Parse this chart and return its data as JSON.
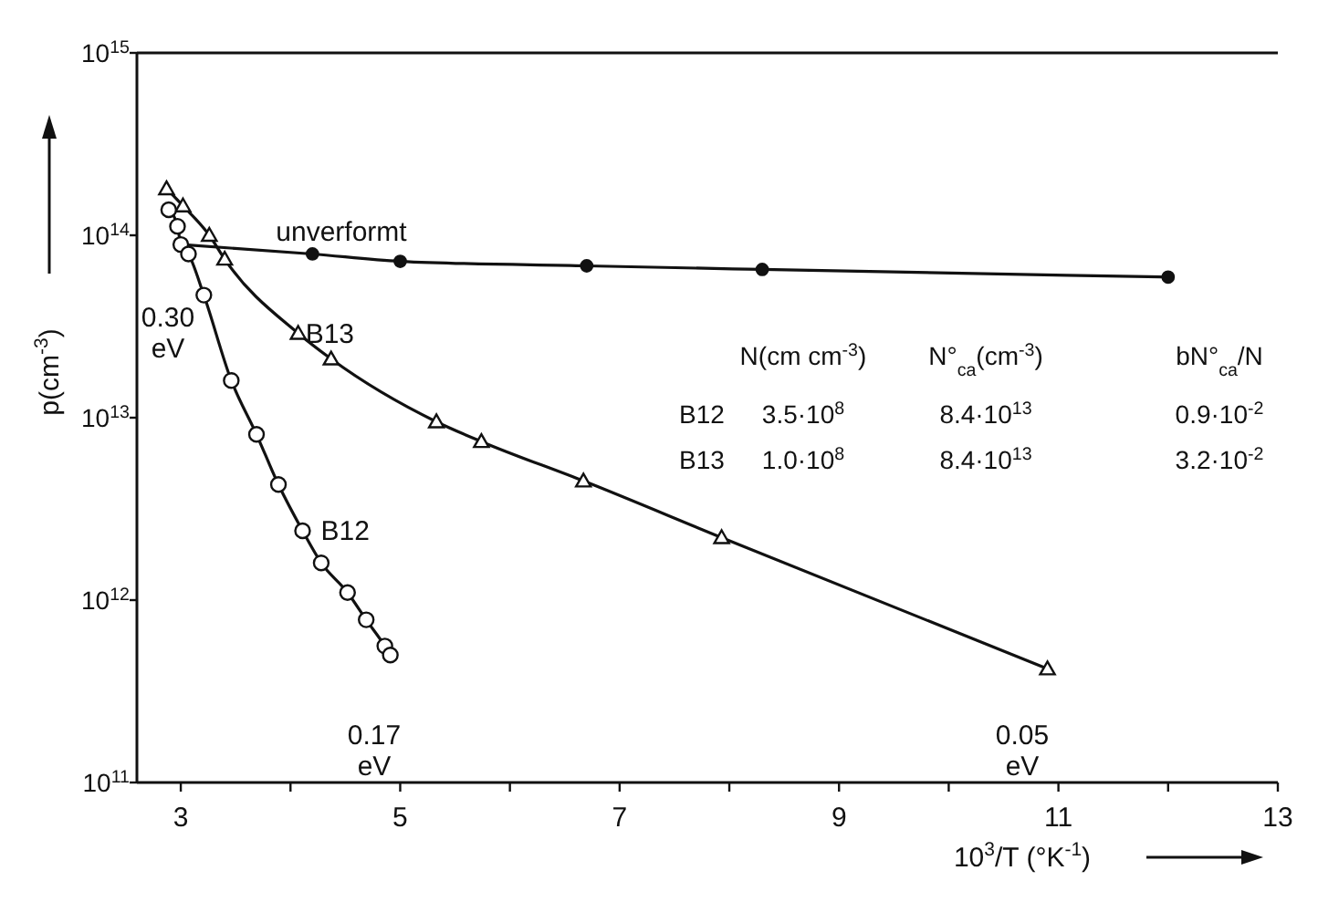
{
  "chart_data": {
    "type": "line",
    "xlabel": "10$^{3}$/T (°K$^{-1}$)",
    "ylabel": "p(cm$^{-3}$)",
    "log": "y",
    "xlim": [
      2.6,
      13
    ],
    "ylim": [
      100000000000.0,
      1000000000000000.0
    ],
    "xticks": [
      3,
      {
        "value": 4,
        "label": null
      },
      5,
      {
        "value": 6,
        "label": null
      },
      7,
      {
        "value": 8,
        "label": null
      },
      9,
      {
        "value": 10,
        "label": null
      },
      11,
      {
        "value": 12,
        "label": null
      },
      13
    ],
    "yticks": [
      {
        "value": 100000000000.0,
        "label": "10$^{11}$"
      },
      {
        "value": 1000000000000.0,
        "label": "10$^{12}$"
      },
      {
        "value": 10000000000000.0,
        "label": "10$^{13}$"
      },
      {
        "value": 100000000000000.0,
        "label": "10$^{14}$"
      },
      {
        "value": 1000000000000000.0,
        "label": "10$^{15}$"
      }
    ],
    "grid": false,
    "line_style": "solid",
    "series": [
      {
        "name": "unverformt",
        "color": "#111111",
        "marker": "circle",
        "x": [
          3.0,
          4.2,
          5.0,
          6.7,
          8.3,
          12.0
        ],
        "values": [
          89000000000000.0,
          79000000000000.0,
          72000000000000.0,
          68000000000000.0,
          65000000000000.0,
          59000000000000.0
        ]
      },
      {
        "name": "B13",
        "color": "#111111",
        "marker": "triangle",
        "x": [
          2.87,
          3.02,
          3.26,
          3.4,
          4.07,
          4.37,
          5.33,
          5.74,
          6.67,
          7.93,
          10.9
        ],
        "values": [
          180000000000000.0,
          145000000000000.0,
          100000000000000.0,
          74000000000000.0,
          29000000000000.0,
          21000000000000.0,
          9500000000000.0,
          7400000000000.0,
          4500000000000.0,
          2200000000000.0,
          420000000000.0
        ]
      },
      {
        "name": "B12",
        "color": "#111111",
        "marker": "circle_open",
        "x": [
          2.89,
          2.97,
          3.0,
          3.07,
          3.21,
          3.46,
          3.69,
          3.89,
          4.11,
          4.28,
          4.52,
          4.69,
          4.86,
          4.91
        ],
        "values": [
          138000000000000.0,
          112000000000000.0,
          89000000000000.0,
          79000000000000.0,
          47000000000000.0,
          16000000000000.0,
          8100000000000.0,
          4300000000000.0,
          2400000000000.0,
          1600000000000.0,
          1100000000000.0,
          780000000000.0,
          560000000000.0,
          500000000000.0
        ]
      }
    ],
    "annotations": [
      "0.30\neV",
      "0.17\neV",
      "0.05\neV",
      "N(cm cm$^{-3}$)",
      "N°$_{ca}$(cm$^{-3}$)",
      "bN°$_{ca}$/N",
      "B12",
      "3.5·10$^{8}$",
      "8.4·10$^{13}$",
      "0.9·10$^{-2}$",
      "B13",
      "1.0·10$^{8}$",
      "8.4·10$^{13}$",
      "3.2·10$^{-2}$"
    ]
  }
}
